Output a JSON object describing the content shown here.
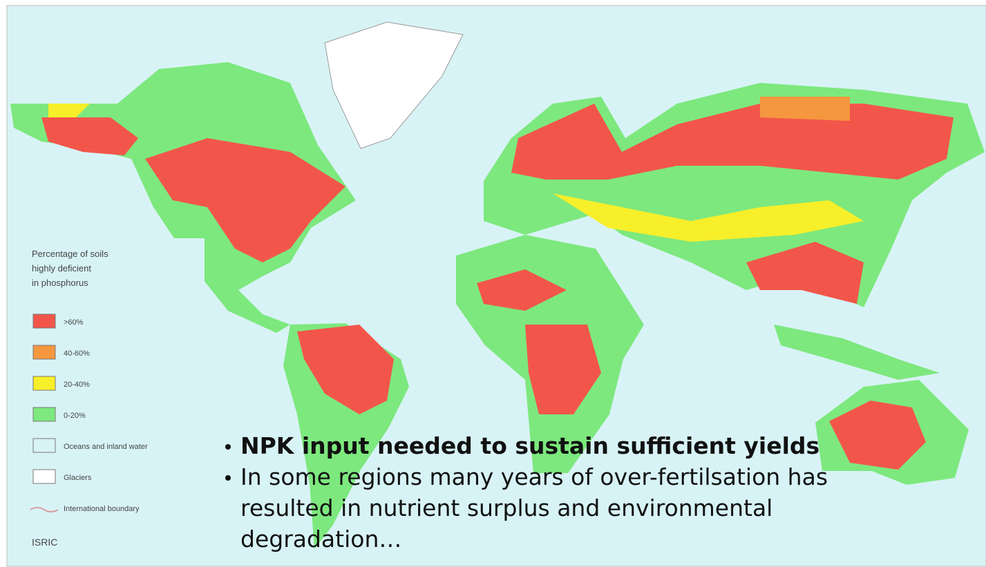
{
  "legend": {
    "title_lines": [
      "Percentage of soils",
      "highly deficient",
      "in phosphorus"
    ],
    "items": [
      {
        "label": ">60%",
        "color": "#f2564a"
      },
      {
        "label": "40-60%",
        "color": "#f5973f"
      },
      {
        "label": "20-40%",
        "color": "#f7ef2a"
      },
      {
        "label": "0-20%",
        "color": "#7de87e"
      },
      {
        "label": "Oceans and inland water",
        "color": "#d8f3f6"
      },
      {
        "label": "Glaciers",
        "color": "#ffffff"
      },
      {
        "label": "International boundary",
        "color": "#d9a0a0",
        "symbol": "line"
      }
    ],
    "source": "ISRIC"
  },
  "bullets": [
    {
      "lines": [
        "NPK input needed to sustain sufficient yields"
      ],
      "bold": true
    },
    {
      "lines": [
        "In some regions many years of over-fertilsation has",
        "resulted in nutrient  surplus and environmental",
        "degradation…"
      ],
      "bold": false
    }
  ]
}
